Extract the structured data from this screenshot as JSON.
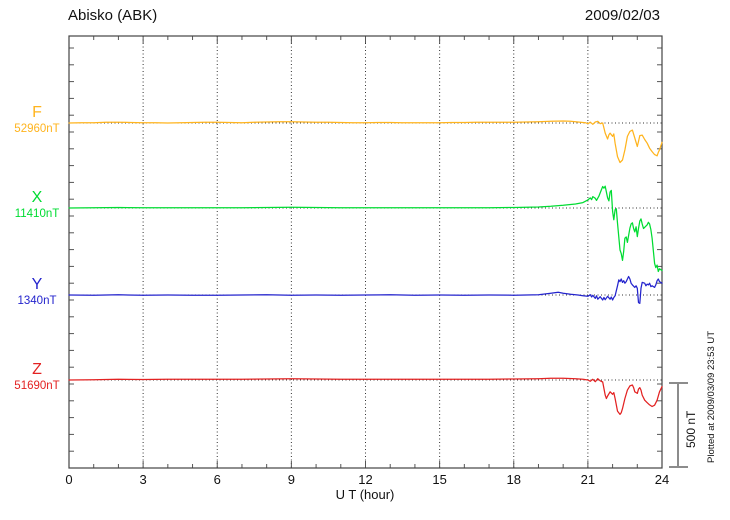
{
  "header": {
    "title": "Abisko (ABK)",
    "date": "2009/02/03"
  },
  "colors": {
    "frame": "#444444",
    "tick": "#555555",
    "grid": "#333333",
    "scale_bar": "#8c8c8c",
    "text": "#111111"
  },
  "chart_data": {
    "type": "line",
    "station": "Abisko (ABK)",
    "date": "2009/02/03",
    "xlabel": "U T (hour)",
    "xlim": [
      0,
      24
    ],
    "x_ticks": [
      0,
      3,
      6,
      9,
      12,
      15,
      18,
      21,
      24
    ],
    "x_minor_tick_hours": 1,
    "grid": "dotted vertical lines every 3 h; dotted horizontal line at each trace baseline",
    "legend_position": "left",
    "scale": {
      "bar_nT": 500,
      "bar_label": "500 nT",
      "y_minor_tick_nT": 100
    },
    "plotted_at": "Plotted at 2009/03/09 23:53 UT",
    "series": [
      {
        "name": "F",
        "baseline_label": "52960nT",
        "baseline_nT": 52960,
        "color": "#ffb41e",
        "points": [
          [
            0,
            0
          ],
          [
            0.5,
            1
          ],
          [
            1,
            2
          ],
          [
            1.5,
            4
          ],
          [
            2,
            5
          ],
          [
            2.5,
            3
          ],
          [
            3,
            2
          ],
          [
            3.5,
            1
          ],
          [
            4,
            0
          ],
          [
            4.5,
            2
          ],
          [
            5,
            3
          ],
          [
            5.5,
            4
          ],
          [
            6,
            4
          ],
          [
            6.5,
            3
          ],
          [
            7,
            2
          ],
          [
            7.5,
            4
          ],
          [
            8,
            6
          ],
          [
            8.5,
            7
          ],
          [
            9,
            7
          ],
          [
            9.5,
            6
          ],
          [
            10,
            5
          ],
          [
            10.5,
            4
          ],
          [
            11,
            3
          ],
          [
            11.5,
            2
          ],
          [
            12,
            2
          ],
          [
            12.5,
            3
          ],
          [
            13,
            3
          ],
          [
            13.5,
            2
          ],
          [
            14,
            2
          ],
          [
            14.5,
            2
          ],
          [
            15,
            2
          ],
          [
            15.5,
            3
          ],
          [
            16,
            3
          ],
          [
            16.5,
            4
          ],
          [
            17,
            4
          ],
          [
            17.5,
            4
          ],
          [
            18,
            5
          ],
          [
            18.5,
            6
          ],
          [
            19,
            8
          ],
          [
            19.5,
            10
          ],
          [
            20,
            12
          ],
          [
            20.3,
            10
          ],
          [
            20.6,
            6
          ],
          [
            20.9,
            2
          ],
          [
            21,
            -4
          ],
          [
            21.1,
            5
          ],
          [
            21.2,
            -8
          ],
          [
            21.3,
            6
          ],
          [
            21.4,
            10
          ],
          [
            21.5,
            -4
          ],
          [
            21.6,
            0
          ],
          [
            21.7,
            -60
          ],
          [
            21.8,
            -95
          ],
          [
            21.85,
            -70
          ],
          [
            21.9,
            -60
          ],
          [
            22,
            -80
          ],
          [
            22.05,
            -65
          ],
          [
            22.1,
            -120
          ],
          [
            22.2,
            -200
          ],
          [
            22.3,
            -235
          ],
          [
            22.4,
            -220
          ],
          [
            22.5,
            -160
          ],
          [
            22.6,
            -80
          ],
          [
            22.7,
            -50
          ],
          [
            22.8,
            -42
          ],
          [
            22.9,
            -90
          ],
          [
            23,
            -140
          ],
          [
            23.05,
            -110
          ],
          [
            23.1,
            -75
          ],
          [
            23.2,
            -72
          ],
          [
            23.3,
            -98
          ],
          [
            23.4,
            -120
          ],
          [
            23.5,
            -150
          ],
          [
            23.6,
            -170
          ],
          [
            23.7,
            -188
          ],
          [
            23.8,
            -195
          ],
          [
            23.85,
            -175
          ],
          [
            23.9,
            -160
          ],
          [
            24,
            -115
          ]
        ]
      },
      {
        "name": "X",
        "baseline_label": "11410nT",
        "baseline_nT": 11410,
        "color": "#00dc32",
        "points": [
          [
            0,
            0
          ],
          [
            1,
            1
          ],
          [
            2,
            3
          ],
          [
            3,
            1
          ],
          [
            4,
            2
          ],
          [
            5,
            1
          ],
          [
            6,
            2
          ],
          [
            7,
            1
          ],
          [
            8,
            3
          ],
          [
            9,
            4
          ],
          [
            10,
            3
          ],
          [
            11,
            2
          ],
          [
            12,
            2
          ],
          [
            13,
            1
          ],
          [
            14,
            2
          ],
          [
            15,
            1
          ],
          [
            16,
            2
          ],
          [
            17,
            2
          ],
          [
            18,
            3
          ],
          [
            18.5,
            4
          ],
          [
            19,
            6
          ],
          [
            19.5,
            10
          ],
          [
            20,
            16
          ],
          [
            20.5,
            24
          ],
          [
            20.8,
            32
          ],
          [
            21,
            48
          ],
          [
            21.1,
            60
          ],
          [
            21.15,
            50
          ],
          [
            21.2,
            68
          ],
          [
            21.3,
            58
          ],
          [
            21.35,
            45
          ],
          [
            21.45,
            72
          ],
          [
            21.55,
            110
          ],
          [
            21.6,
            128
          ],
          [
            21.65,
            118
          ],
          [
            21.7,
            130
          ],
          [
            21.8,
            60
          ],
          [
            21.85,
            42
          ],
          [
            21.9,
            95
          ],
          [
            21.95,
            105
          ],
          [
            22,
            -20
          ],
          [
            22.05,
            -70
          ],
          [
            22.1,
            -10
          ],
          [
            22.15,
            -5
          ],
          [
            22.2,
            -90
          ],
          [
            22.3,
            -250
          ],
          [
            22.35,
            -270
          ],
          [
            22.4,
            -312
          ],
          [
            22.45,
            -258
          ],
          [
            22.5,
            -180
          ],
          [
            22.55,
            -172
          ],
          [
            22.6,
            -205
          ],
          [
            22.7,
            -120
          ],
          [
            22.75,
            -95
          ],
          [
            22.8,
            -88
          ],
          [
            22.85,
            -122
          ],
          [
            22.9,
            -142
          ],
          [
            22.95,
            -112
          ],
          [
            23,
            -170
          ],
          [
            23.05,
            -122
          ],
          [
            23.1,
            -78
          ],
          [
            23.15,
            -65
          ],
          [
            23.2,
            -95
          ],
          [
            23.25,
            -122
          ],
          [
            23.3,
            -115
          ],
          [
            23.4,
            -100
          ],
          [
            23.45,
            -85
          ],
          [
            23.5,
            -95
          ],
          [
            23.55,
            -130
          ],
          [
            23.6,
            -180
          ],
          [
            23.7,
            -330
          ],
          [
            23.75,
            -355
          ],
          [
            23.8,
            -340
          ],
          [
            23.85,
            -378
          ],
          [
            23.9,
            -362
          ],
          [
            24,
            -372
          ]
        ]
      },
      {
        "name": "Y",
        "baseline_label": "1340nT",
        "baseline_nT": 1340,
        "color": "#2424cd",
        "points": [
          [
            0,
            0
          ],
          [
            1,
            -2
          ],
          [
            2,
            1
          ],
          [
            3,
            -1
          ],
          [
            4,
            0
          ],
          [
            5,
            -2
          ],
          [
            6,
            -1
          ],
          [
            7,
            0
          ],
          [
            8,
            1
          ],
          [
            9,
            -1
          ],
          [
            10,
            0
          ],
          [
            11,
            -1
          ],
          [
            12,
            0
          ],
          [
            13,
            1
          ],
          [
            14,
            -1
          ],
          [
            15,
            0
          ],
          [
            16,
            -1
          ],
          [
            17,
            0
          ],
          [
            18,
            -1
          ],
          [
            19,
            2
          ],
          [
            19.5,
            10
          ],
          [
            19.8,
            16
          ],
          [
            20,
            10
          ],
          [
            20.3,
            4
          ],
          [
            20.6,
            0
          ],
          [
            20.8,
            -4
          ],
          [
            21,
            -8
          ],
          [
            21.1,
            2
          ],
          [
            21.15,
            -12
          ],
          [
            21.2,
            -2
          ],
          [
            21.3,
            -20
          ],
          [
            21.35,
            -5
          ],
          [
            21.4,
            -25
          ],
          [
            21.5,
            -10
          ],
          [
            21.6,
            -30
          ],
          [
            21.65,
            -15
          ],
          [
            21.7,
            -28
          ],
          [
            21.8,
            -8
          ],
          [
            21.9,
            -25
          ],
          [
            21.95,
            -12
          ],
          [
            22,
            -30
          ],
          [
            22.05,
            -15
          ],
          [
            22.1,
            -5
          ],
          [
            22.2,
            55
          ],
          [
            22.25,
            90
          ],
          [
            22.3,
            80
          ],
          [
            22.35,
            95
          ],
          [
            22.4,
            75
          ],
          [
            22.45,
            85
          ],
          [
            22.5,
            70
          ],
          [
            22.55,
            80
          ],
          [
            22.6,
            95
          ],
          [
            22.65,
            110
          ],
          [
            22.7,
            95
          ],
          [
            22.75,
            70
          ],
          [
            22.8,
            60
          ],
          [
            22.9,
            45
          ],
          [
            22.95,
            55
          ],
          [
            23,
            40
          ],
          [
            23.05,
            -45
          ],
          [
            23.1,
            -50
          ],
          [
            23.15,
            40
          ],
          [
            23.2,
            75
          ],
          [
            23.3,
            70
          ],
          [
            23.35,
            55
          ],
          [
            23.4,
            65
          ],
          [
            23.45,
            60
          ],
          [
            23.5,
            70
          ],
          [
            23.55,
            50
          ],
          [
            23.6,
            55
          ],
          [
            23.7,
            45
          ],
          [
            23.75,
            60
          ],
          [
            23.8,
            85
          ],
          [
            23.85,
            95
          ],
          [
            23.9,
            80
          ],
          [
            24,
            70
          ]
        ]
      },
      {
        "name": "Z",
        "baseline_label": "51690nT",
        "baseline_nT": 51690,
        "color": "#e32222",
        "points": [
          [
            0,
            0
          ],
          [
            1,
            2
          ],
          [
            2,
            4
          ],
          [
            3,
            3
          ],
          [
            4,
            4
          ],
          [
            5,
            5
          ],
          [
            6,
            4
          ],
          [
            7,
            5
          ],
          [
            8,
            6
          ],
          [
            9,
            7
          ],
          [
            10,
            6
          ],
          [
            11,
            5
          ],
          [
            12,
            4
          ],
          [
            13,
            5
          ],
          [
            14,
            4
          ],
          [
            15,
            4
          ],
          [
            16,
            5
          ],
          [
            17,
            5
          ],
          [
            18,
            6
          ],
          [
            19,
            8
          ],
          [
            19.5,
            10
          ],
          [
            20,
            11
          ],
          [
            20.5,
            8
          ],
          [
            20.8,
            4
          ],
          [
            21,
            0
          ],
          [
            21.1,
            -8
          ],
          [
            21.2,
            4
          ],
          [
            21.3,
            -10
          ],
          [
            21.4,
            8
          ],
          [
            21.5,
            -5
          ],
          [
            21.6,
            -12
          ],
          [
            21.7,
            -90
          ],
          [
            21.75,
            -110
          ],
          [
            21.8,
            -95
          ],
          [
            21.9,
            -70
          ],
          [
            22,
            -85
          ],
          [
            22.05,
            -75
          ],
          [
            22.1,
            -110
          ],
          [
            22.2,
            -185
          ],
          [
            22.3,
            -205
          ],
          [
            22.35,
            -195
          ],
          [
            22.4,
            -170
          ],
          [
            22.5,
            -110
          ],
          [
            22.6,
            -60
          ],
          [
            22.7,
            -35
          ],
          [
            22.8,
            -30
          ],
          [
            22.85,
            -45
          ],
          [
            22.9,
            -70
          ],
          [
            23,
            -80
          ],
          [
            23.05,
            -55
          ],
          [
            23.1,
            -45
          ],
          [
            23.15,
            -60
          ],
          [
            23.2,
            -90
          ],
          [
            23.3,
            -120
          ],
          [
            23.4,
            -135
          ],
          [
            23.5,
            -148
          ],
          [
            23.6,
            -158
          ],
          [
            23.7,
            -150
          ],
          [
            23.8,
            -120
          ],
          [
            23.9,
            -70
          ],
          [
            24,
            -40
          ]
        ]
      }
    ]
  }
}
